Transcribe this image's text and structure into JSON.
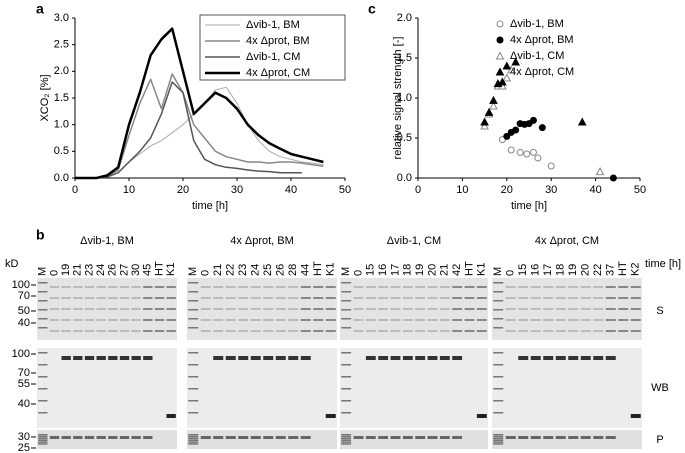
{
  "chart_data": [
    {
      "type": "line",
      "panel_label": "a",
      "xlabel": "time [h]",
      "ylabel": "XCO₂ [%]",
      "x": [
        0,
        2,
        4,
        6,
        8,
        10,
        12,
        14,
        16,
        18,
        20,
        22,
        24,
        26,
        28,
        30,
        32,
        34,
        36,
        38,
        40,
        42,
        44,
        46
      ],
      "xlim": [
        0,
        50
      ],
      "xticks": [
        0,
        10,
        20,
        30,
        40,
        50
      ],
      "ylim": [
        0,
        3
      ],
      "yticks": [
        {
          "value": 0,
          "label": "0.0"
        },
        0.5,
        {
          "value": 1,
          "label": "1.0"
        },
        1.5,
        {
          "value": 2,
          "label": "2.0"
        },
        2.5,
        {
          "value": 3,
          "label": "3.0"
        }
      ],
      "legend": "upper right",
      "series": [
        {
          "name": "Δvib-1, BM",
          "color": "#aaaaaa",
          "line_width": 1,
          "values": [
            0,
            0,
            0,
            0.02,
            0.1,
            0.3,
            0.45,
            0.6,
            0.7,
            0.85,
            1.0,
            1.2,
            1.4,
            1.65,
            1.7,
            1.4,
            1.0,
            0.7,
            0.5,
            0.4,
            0.35,
            0.3,
            0.28,
            0.25
          ]
        },
        {
          "name": "4x Δprot, BM",
          "color": "#888888",
          "line_width": 1.5,
          "values": [
            0,
            0,
            0,
            0.03,
            0.15,
            0.8,
            1.4,
            1.85,
            1.3,
            1.95,
            1.6,
            1.0,
            0.75,
            0.5,
            0.4,
            0.35,
            0.3,
            0.3,
            0.28,
            0.3,
            0.3,
            0.28,
            0.25,
            0.22
          ]
        },
        {
          "name": "Δvib-1, CM",
          "color": "#555555",
          "line_width": 1.5,
          "values": [
            0,
            0,
            0,
            0.02,
            0.1,
            0.3,
            0.5,
            0.75,
            1.2,
            1.8,
            1.6,
            0.7,
            0.35,
            0.25,
            0.2,
            0.18,
            0.15,
            0.13,
            0.12,
            0.1,
            0.1,
            0.1,
            null,
            null
          ]
        },
        {
          "name": "4x Δprot, CM",
          "color": "#000000",
          "line_width": 2.5,
          "values": [
            0,
            0,
            0,
            0.05,
            0.2,
            1.0,
            1.6,
            2.3,
            2.6,
            2.8,
            2.0,
            1.2,
            1.4,
            1.6,
            1.5,
            1.3,
            1.0,
            0.8,
            0.65,
            0.55,
            0.45,
            0.4,
            0.35,
            0.3
          ]
        }
      ]
    },
    {
      "type": "scatter",
      "panel_label": "c",
      "xlabel": "time [h]",
      "ylabel": "relative signal strength [-]",
      "xlim": [
        0,
        50
      ],
      "xticks": [
        0,
        10,
        20,
        30,
        40,
        50
      ],
      "ylim": [
        0,
        2
      ],
      "yticks": [
        {
          "value": 0,
          "label": "0.0"
        },
        0.5,
        {
          "value": 1,
          "label": "1.0"
        },
        1.5,
        {
          "value": 2,
          "label": "2.0"
        }
      ],
      "legend": "upper right",
      "series": [
        {
          "name": "Δvib-1, BM",
          "color": "#888888",
          "marker": "circle",
          "filled": false,
          "x": [
            19,
            21,
            23,
            24.5,
            26,
            27,
            30
          ],
          "values": [
            0.48,
            0.35,
            0.32,
            0.3,
            0.32,
            0.25,
            0.15
          ]
        },
        {
          "name": "4x Δprot, BM",
          "color": "#000000",
          "marker": "circle",
          "filled": true,
          "x": [
            20,
            21,
            22,
            23,
            24,
            25,
            26,
            28,
            44
          ],
          "values": [
            0.52,
            0.57,
            0.6,
            0.68,
            0.67,
            0.68,
            0.72,
            0.63,
            0
          ]
        },
        {
          "name": "Δvib-1, CM",
          "color": "#888888",
          "marker": "triangle",
          "filled": false,
          "x": [
            15,
            16,
            17,
            18,
            19,
            20,
            21,
            41
          ],
          "values": [
            0.65,
            0.8,
            0.9,
            1.15,
            1.15,
            1.25,
            1.35,
            0.08
          ]
        },
        {
          "name": "4x Δprot, CM",
          "color": "#000000",
          "marker": "triangle",
          "filled": true,
          "x": [
            15,
            16,
            17,
            18,
            19,
            20,
            22,
            37
          ],
          "values": [
            0.7,
            0.82,
            0.97,
            1.18,
            1.2,
            1.4,
            1.45,
            0.7
          ]
        }
      ]
    }
  ],
  "gels": {
    "panel_label": "b",
    "kd_label": "kD",
    "time_label": "time [h]",
    "groups": [
      {
        "title": "Δvib-1, BM",
        "lanes": [
          "M",
          "0",
          "19",
          "21",
          "23",
          "24",
          "26",
          "27",
          "30",
          "45",
          "HT",
          "K1"
        ]
      },
      {
        "title": "4x Δprot, BM",
        "lanes": [
          "M",
          "0",
          "21",
          "22",
          "23",
          "24",
          "25",
          "26",
          "28",
          "44",
          "HT",
          "K1"
        ]
      },
      {
        "title": "Δvib-1, CM",
        "lanes": [
          "M",
          "0",
          "15",
          "16",
          "17",
          "18",
          "19",
          "20",
          "21",
          "42",
          "HT",
          "K1"
        ]
      },
      {
        "title": "4x Δprot, CM",
        "lanes": [
          "M",
          "0",
          "15",
          "16",
          "17",
          "18",
          "19",
          "20",
          "22",
          "37",
          "HT",
          "K2"
        ]
      }
    ],
    "rows": [
      {
        "label": "S",
        "markers": [
          "100",
          "70",
          "50",
          "40"
        ]
      },
      {
        "label": "WB",
        "markers": [
          "100",
          "70",
          "55",
          "40"
        ]
      },
      {
        "label": "P",
        "markers": [
          "30",
          "25"
        ]
      }
    ]
  }
}
